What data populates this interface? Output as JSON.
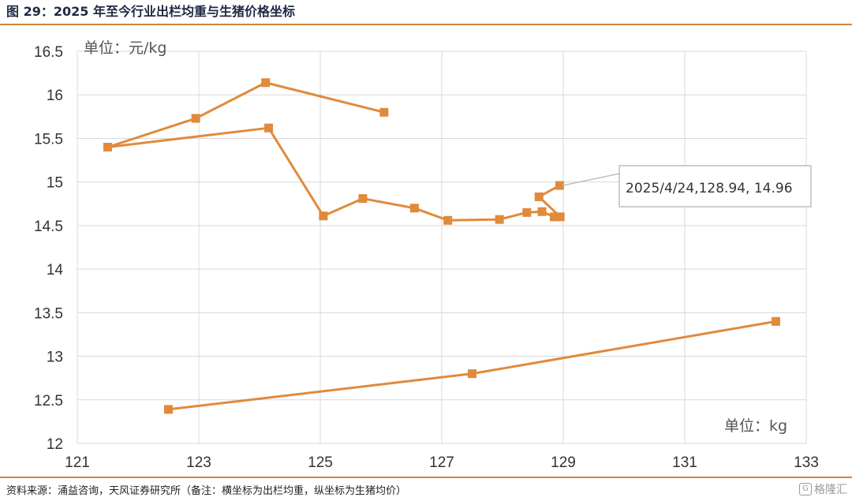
{
  "header": {
    "title": "图 29：2025 年至今行业出栏均重与生猪价格坐标"
  },
  "footer": {
    "source": "资料来源：涌益咨询，天风证券研究所（备注：横坐标为出栏均重，纵坐标为生猪均价）",
    "watermark": "格隆汇"
  },
  "chart_data": {
    "type": "line",
    "title": "",
    "ylabel": "单位：元/kg",
    "xlabel": "单位：kg",
    "xlim": [
      121,
      133
    ],
    "ylim": [
      12,
      16.5
    ],
    "x_ticks": [
      121,
      123,
      125,
      127,
      129,
      131,
      133
    ],
    "y_ticks": [
      12,
      12.5,
      13,
      13.5,
      14,
      14.5,
      15,
      15.5,
      16,
      16.5
    ],
    "grid": true,
    "color": "#e08a3c",
    "series": [
      {
        "points": [
          [
            126.05,
            15.8
          ],
          [
            124.1,
            16.14
          ],
          [
            122.95,
            15.73
          ],
          [
            121.5,
            15.4
          ],
          [
            124.15,
            15.62
          ],
          [
            125.05,
            14.61
          ],
          [
            125.7,
            14.81
          ],
          [
            126.55,
            14.7
          ],
          [
            127.1,
            14.56
          ],
          [
            127.95,
            14.57
          ],
          [
            128.4,
            14.65
          ],
          [
            128.65,
            14.66
          ],
          [
            128.85,
            14.6
          ],
          [
            128.95,
            14.6
          ],
          [
            128.6,
            14.83
          ],
          [
            128.94,
            14.96
          ]
        ]
      },
      {
        "points": [
          [
            122.5,
            12.39
          ],
          [
            127.5,
            12.8
          ],
          [
            132.5,
            13.4
          ]
        ]
      }
    ],
    "annotation": {
      "text": "2025/4/24,128.94, 14.96",
      "x": 128.94,
      "y": 14.96
    }
  }
}
